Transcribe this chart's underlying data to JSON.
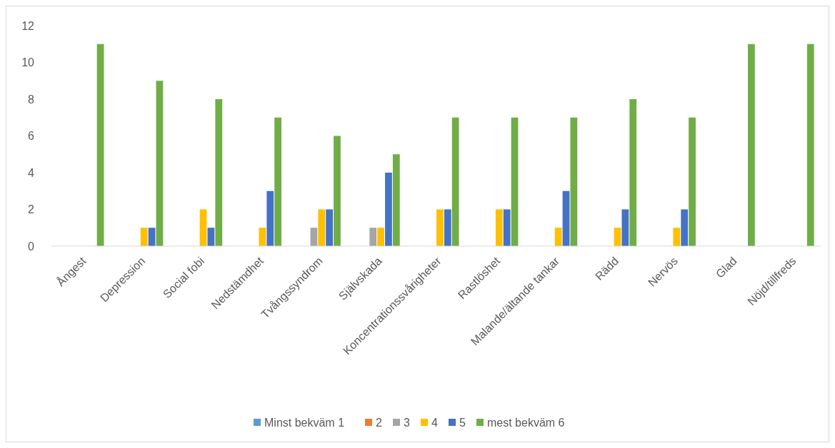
{
  "chart_data": {
    "type": "bar",
    "categories": [
      "Ångest",
      "Depression",
      "Social fobi",
      "Nedstämdhet",
      "Tvångssyndrom",
      "Självskada",
      "Koncentrationssvårigheter",
      "Rastlöshet",
      "Malande/ältande tankar",
      "Rädd",
      "Nervös",
      "Glad",
      "Nöjd/tillfreds"
    ],
    "series": [
      {
        "name": "Minst bekväm 1",
        "color": "#5b9bd5",
        "values": [
          0,
          0,
          0,
          0,
          0,
          0,
          0,
          0,
          0,
          0,
          0,
          0,
          0
        ]
      },
      {
        "name": "2",
        "color": "#ed7d31",
        "values": [
          0,
          0,
          0,
          0,
          0,
          0,
          0,
          0,
          0,
          0,
          0,
          0,
          0
        ]
      },
      {
        "name": "3",
        "color": "#a5a5a5",
        "values": [
          0,
          0,
          0,
          0,
          1,
          1,
          0,
          0,
          0,
          0,
          0,
          0,
          0
        ]
      },
      {
        "name": "4",
        "color": "#ffc000",
        "values": [
          0,
          1,
          2,
          1,
          2,
          1,
          2,
          2,
          1,
          1,
          1,
          0,
          0
        ]
      },
      {
        "name": "5",
        "color": "#4472c4",
        "values": [
          0,
          1,
          1,
          3,
          2,
          4,
          2,
          2,
          3,
          2,
          2,
          0,
          0
        ]
      },
      {
        "name": "mest bekväm 6",
        "color": "#70ad47",
        "values": [
          11,
          9,
          8,
          7,
          6,
          5,
          7,
          7,
          7,
          8,
          7,
          11,
          11
        ]
      }
    ],
    "ylim": [
      0,
      12
    ],
    "yticks": [
      0,
      2,
      4,
      6,
      8,
      10,
      12
    ],
    "legend": "bottom"
  }
}
